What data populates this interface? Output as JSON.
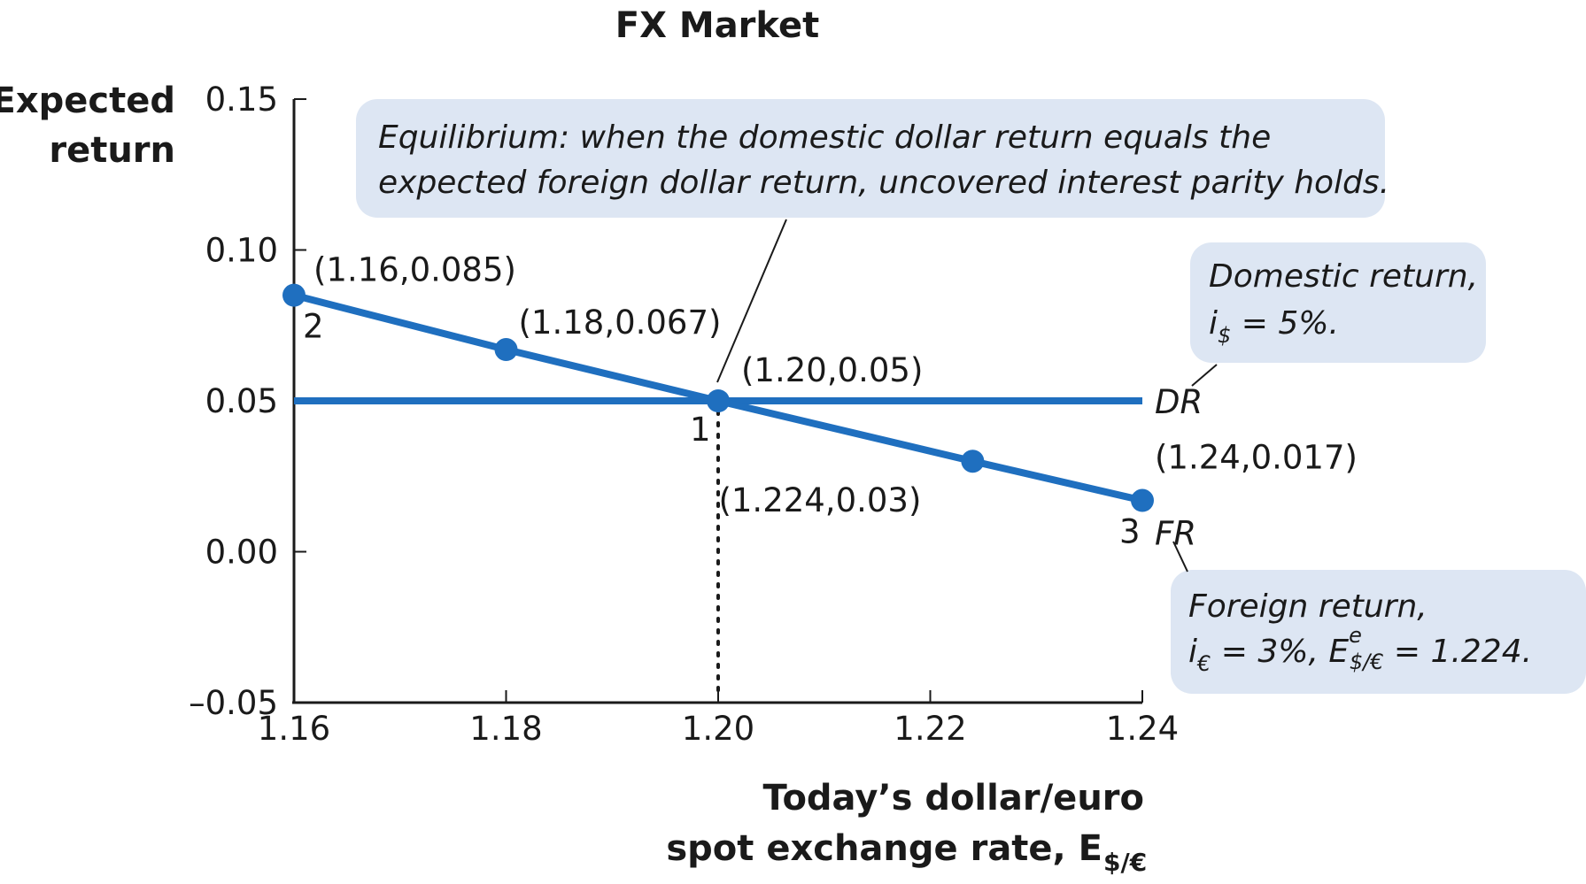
{
  "colors": {
    "line": "#1f6fbf",
    "callout_bg": "#dde6f3",
    "text": "#1a1a1a"
  },
  "chart_data": {
    "type": "line",
    "title": "FX Market",
    "ylabel": [
      "Expected",
      "return"
    ],
    "xlabel": [
      "Today’s dollar/euro",
      "spot exchange rate, E"
    ],
    "xlabel_subscript": "$/€",
    "xlim": [
      1.16,
      1.24
    ],
    "ylim": [
      -0.05,
      0.15
    ],
    "x_ticks": [
      "1.16",
      "1.18",
      "1.20",
      "1.22",
      "1.24"
    ],
    "y_ticks": [
      "–0.05",
      "0.00",
      "0.05",
      "0.10",
      "0.15"
    ],
    "x_tick_values": [
      1.16,
      1.18,
      1.2,
      1.22,
      1.24
    ],
    "y_tick_values": [
      -0.05,
      0.0,
      0.05,
      0.1,
      0.15
    ],
    "grid": false,
    "series": [
      {
        "name": "DR",
        "x": [
          1.16,
          1.24
        ],
        "y": [
          0.05,
          0.05
        ]
      },
      {
        "name": "FR",
        "x": [
          1.16,
          1.18,
          1.2,
          1.224,
          1.24
        ],
        "y": [
          0.085,
          0.067,
          0.05,
          0.03,
          0.017
        ]
      }
    ],
    "points": [
      {
        "x": 1.16,
        "y": 0.085,
        "label": "(1.16,0.085)",
        "number": "2"
      },
      {
        "x": 1.18,
        "y": 0.067,
        "label": "(1.18,0.067)",
        "number": ""
      },
      {
        "x": 1.2,
        "y": 0.05,
        "label": "(1.20,0.05)",
        "number": "1"
      },
      {
        "x": 1.224,
        "y": 0.03,
        "label": "(1.224,0.03)",
        "number": ""
      },
      {
        "x": 1.24,
        "y": 0.017,
        "label": "(1.24,0.017)",
        "number": "3"
      }
    ],
    "annotations": {
      "equilibrium": [
        "Equilibrium: when the domestic dollar return equals the",
        "expected foreign dollar return, uncovered interest parity holds."
      ],
      "domestic_line1": "Domestic return,",
      "domestic_i": "i",
      "domestic_sub": "$",
      "domestic_rest": " = 5%.",
      "foreign_line1": "Foreign return,",
      "foreign_i": "i",
      "foreign_sub": "€",
      "foreign_mid": " = 3%, E",
      "foreign_sup": "e",
      "foreign_sub2": "$/€",
      "foreign_rest": " = 1.224."
    }
  }
}
